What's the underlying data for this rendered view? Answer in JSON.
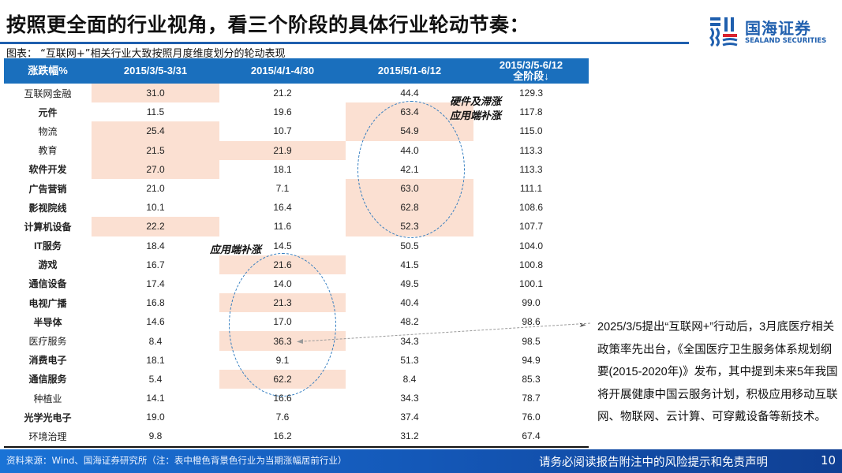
{
  "header": {
    "title": "按照更全面的行业视角，看三个阶段的具体行业轮动节奏：",
    "logo": {
      "name_cn": "国海证券",
      "name_en": "SEALAND SECURITIES",
      "brand_color": "#1f5fae",
      "accent_color": "#d9232e"
    }
  },
  "figure": {
    "caption": "图表：  “互联网+”相关行业大致按照月度维度划分的轮动表现",
    "table": {
      "columns": [
        "涨跌幅%",
        "2015/3/5-3/31",
        "2015/4/1-4/30",
        "2015/5/1-6/12",
        "2015/3/5-6/12\n全阶段↓"
      ],
      "column_labels": {
        "c0": "涨跌幅%",
        "c1": "2015/3/5-3/31",
        "c2": "2015/4/1-4/30",
        "c3": "2015/5/1-6/12",
        "c4_line1": "2015/3/5-6/12",
        "c4_line2": "全阶段↓"
      },
      "header_color": "#1a6fbd",
      "highlight_color": "#fbe0d2",
      "rows": [
        {
          "industry": "互联网金融",
          "bold": false,
          "p1": "31.0",
          "p2": "21.2",
          "p3": "44.4",
          "total": "129.3",
          "hl": [
            true,
            false,
            false
          ]
        },
        {
          "industry": "元件",
          "bold": true,
          "p1": "11.5",
          "p2": "19.6",
          "p3": "63.4",
          "total": "117.8",
          "hl": [
            false,
            false,
            true
          ]
        },
        {
          "industry": "物流",
          "bold": false,
          "p1": "25.4",
          "p2": "10.7",
          "p3": "54.9",
          "total": "115.0",
          "hl": [
            true,
            false,
            true
          ]
        },
        {
          "industry": "教育",
          "bold": false,
          "p1": "21.5",
          "p2": "21.9",
          "p3": "44.0",
          "total": "113.3",
          "hl": [
            true,
            true,
            false
          ]
        },
        {
          "industry": "软件开发",
          "bold": true,
          "p1": "27.0",
          "p2": "18.1",
          "p3": "42.1",
          "total": "113.3",
          "hl": [
            true,
            false,
            false
          ]
        },
        {
          "industry": "广告营销",
          "bold": true,
          "p1": "21.0",
          "p2": "7.1",
          "p3": "63.0",
          "total": "111.1",
          "hl": [
            false,
            false,
            true
          ]
        },
        {
          "industry": "影视院线",
          "bold": true,
          "p1": "10.1",
          "p2": "16.4",
          "p3": "62.8",
          "total": "108.6",
          "hl": [
            false,
            false,
            true
          ]
        },
        {
          "industry": "计算机设备",
          "bold": true,
          "p1": "22.2",
          "p2": "11.6",
          "p3": "52.3",
          "total": "107.7",
          "hl": [
            true,
            false,
            true
          ]
        },
        {
          "industry": "IT服务",
          "bold": true,
          "p1": "18.4",
          "p2": "14.5",
          "p3": "50.5",
          "total": "104.0",
          "hl": [
            false,
            false,
            false
          ]
        },
        {
          "industry": "游戏",
          "bold": true,
          "p1": "16.7",
          "p2": "21.6",
          "p3": "41.5",
          "total": "100.8",
          "hl": [
            false,
            true,
            false
          ]
        },
        {
          "industry": "通信设备",
          "bold": true,
          "p1": "17.4",
          "p2": "14.0",
          "p3": "49.5",
          "total": "100.1",
          "hl": [
            false,
            false,
            false
          ]
        },
        {
          "industry": "电视广播",
          "bold": true,
          "p1": "16.8",
          "p2": "21.3",
          "p3": "40.4",
          "total": "99.0",
          "hl": [
            false,
            true,
            false
          ]
        },
        {
          "industry": "半导体",
          "bold": true,
          "p1": "14.6",
          "p2": "17.0",
          "p3": "48.2",
          "total": "98.6",
          "hl": [
            false,
            false,
            false
          ]
        },
        {
          "industry": "医疗服务",
          "bold": false,
          "p1": "8.4",
          "p2": "36.3",
          "p3": "34.3",
          "total": "98.5",
          "hl": [
            false,
            true,
            false
          ]
        },
        {
          "industry": "消费电子",
          "bold": true,
          "p1": "18.1",
          "p2": "9.1",
          "p3": "51.3",
          "total": "94.9",
          "hl": [
            false,
            false,
            false
          ]
        },
        {
          "industry": "通信服务",
          "bold": true,
          "p1": "5.4",
          "p2": "62.2",
          "p3": "8.4",
          "total": "85.3",
          "hl": [
            false,
            true,
            false
          ]
        },
        {
          "industry": "种植业",
          "bold": false,
          "p1": "14.1",
          "p2": "16.6",
          "p3": "34.3",
          "total": "78.7",
          "hl": [
            false,
            false,
            false
          ]
        },
        {
          "industry": "光学光电子",
          "bold": true,
          "p1": "19.0",
          "p2": "7.6",
          "p3": "37.4",
          "total": "76.0",
          "hl": [
            false,
            false,
            false
          ]
        },
        {
          "industry": "环境治理",
          "bold": false,
          "p1": "9.8",
          "p2": "16.2",
          "p3": "31.2",
          "total": "67.4",
          "hl": [
            false,
            false,
            false
          ]
        }
      ]
    },
    "annotations": {
      "stage3_line1": "硬件及滞涨",
      "stage3_line2": "应用端补涨",
      "stage2": "应用端补涨",
      "ellipse_color": "#2f7bbf"
    }
  },
  "side_note": {
    "bullet": "➢",
    "text": "2025/3/5提出“互联网+”行动后，3月底医疗相关政策率先出台，《全国医疗卫生服务体系规划纲要(2015-2020年)》发布，其中提到未来5年我国将开展健康中国云服务计划，积极应用移动互联网、物联网、云计算、可穿戴设备等新技术。"
  },
  "footer": {
    "source": "资料来源：Wind、国海证券研究所（注：表中橙色背景色行业为当期涨幅居前行业）",
    "disclaimer": "请务必阅读报告附注中的风险提示和免责声明",
    "page_number": "10"
  }
}
